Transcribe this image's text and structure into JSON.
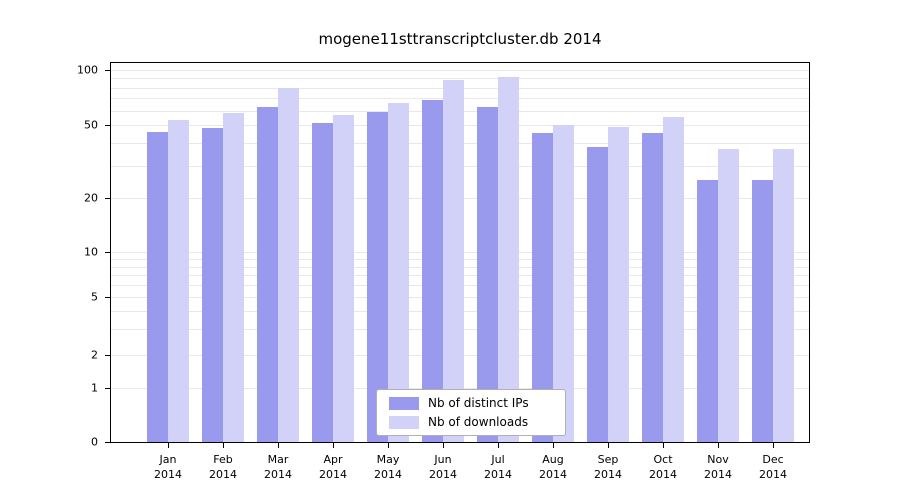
{
  "chart_data": {
    "type": "bar",
    "title": "mogene11sttranscriptcluster.db 2014",
    "categories": [
      "Jan",
      "Feb",
      "Mar",
      "Apr",
      "May",
      "Jun",
      "Jul",
      "Aug",
      "Sep",
      "Oct",
      "Nov",
      "Dec"
    ],
    "category_year": "2014",
    "series": [
      {
        "name": "Nb of distinct IPs",
        "color": "#9999ee",
        "values": [
          46,
          48,
          63,
          51,
          59,
          69,
          63,
          45,
          38,
          45,
          25,
          25
        ]
      },
      {
        "name": "Nb of downloads",
        "color": "#d2d2f8",
        "values": [
          53,
          58,
          80,
          57,
          66,
          88,
          92,
          50,
          49,
          55,
          37,
          37
        ]
      }
    ],
    "yscale": "log-like",
    "yticks": [
      0,
      1,
      2,
      5,
      10,
      20,
      50,
      100
    ],
    "ylim": [
      0,
      100
    ],
    "grid": true,
    "legend_position": "bottom-center-inside"
  }
}
